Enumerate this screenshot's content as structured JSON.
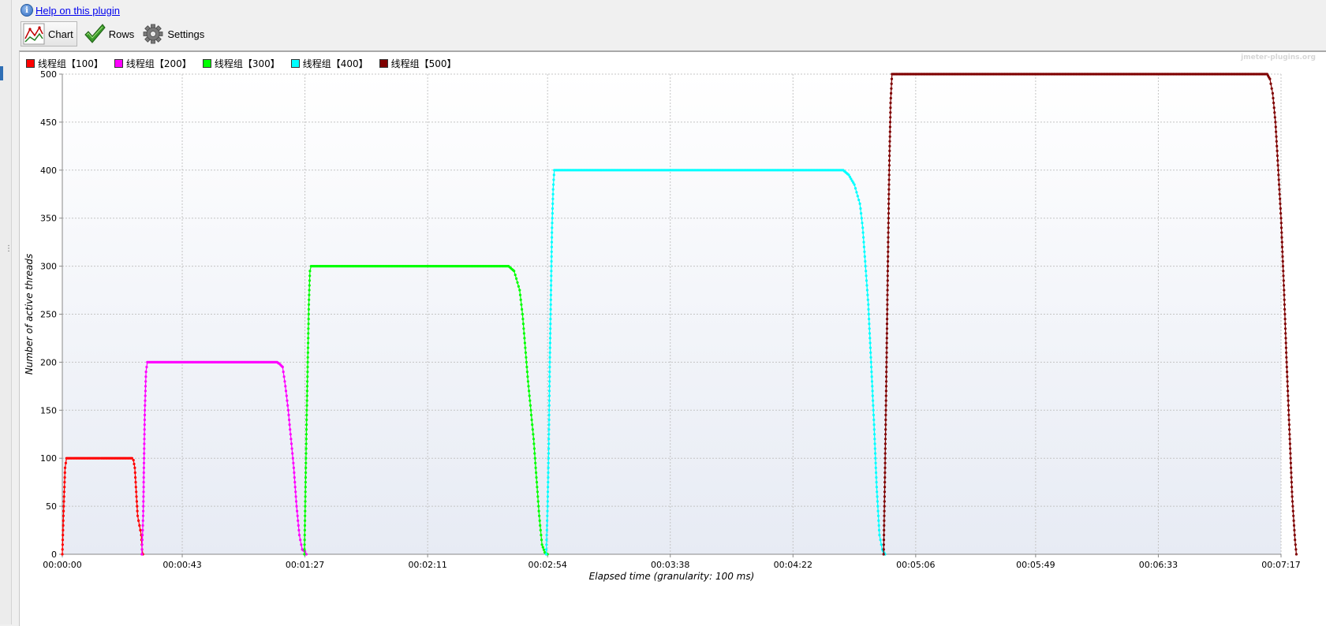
{
  "help": {
    "link_text": "Help on this plugin",
    "icon": "info-icon"
  },
  "toolbar": {
    "chart_label": "Chart",
    "rows_label": "Rows",
    "settings_label": "Settings"
  },
  "watermark": "jmeter-plugins.org",
  "chart_data": {
    "type": "line",
    "title": "",
    "xlabel": "Elapsed time (granularity: 100 ms)",
    "ylabel": "Number of active threads",
    "xlim": [
      0,
      437
    ],
    "ylim": [
      0,
      500
    ],
    "y_ticks": [
      0,
      50,
      100,
      150,
      200,
      250,
      300,
      350,
      400,
      450,
      500
    ],
    "x_ticks": [
      {
        "value": 0,
        "label": "00:00:00"
      },
      {
        "value": 43,
        "label": "00:00:43"
      },
      {
        "value": 87,
        "label": "00:01:27"
      },
      {
        "value": 131,
        "label": "00:02:11"
      },
      {
        "value": 174,
        "label": "00:02:54"
      },
      {
        "value": 218,
        "label": "00:03:38"
      },
      {
        "value": 262,
        "label": "00:04:22"
      },
      {
        "value": 306,
        "label": "00:05:06"
      },
      {
        "value": 349,
        "label": "00:05:49"
      },
      {
        "value": 393,
        "label": "00:06:33"
      },
      {
        "value": 437,
        "label": "00:07:17"
      }
    ],
    "grid": true,
    "legend_position": "top-left",
    "series": [
      {
        "name": "线程组【100】",
        "color": "#ff0000",
        "x": [
          0,
          0.5,
          1,
          1.5,
          25,
          25.5,
          26,
          26.3,
          26.6,
          27,
          28.3,
          28.6,
          28.9
        ],
        "y": [
          0,
          50,
          90,
          100,
          100,
          98,
          90,
          75,
          60,
          40,
          20,
          5,
          0
        ]
      },
      {
        "name": "线程组【200】",
        "color": "#ff00ff",
        "x": [
          28.5,
          29,
          29.3,
          29.6,
          30,
          30.5,
          77,
          78,
          79,
          80,
          81,
          82,
          83,
          84,
          85,
          86,
          87,
          87.5
        ],
        "y": [
          0,
          40,
          100,
          150,
          190,
          200,
          200,
          198,
          195,
          175,
          150,
          120,
          90,
          50,
          20,
          5,
          3,
          0
        ]
      },
      {
        "name": "线程组【300】",
        "color": "#00ff00",
        "x": [
          86.8,
          87.2,
          87.6,
          88,
          88.4,
          88.8,
          89.2,
          160,
          162,
          164,
          165,
          166,
          167,
          168,
          169,
          170,
          171,
          172,
          173,
          174
        ],
        "y": [
          0,
          70,
          140,
          200,
          260,
          295,
          300,
          300,
          295,
          275,
          250,
          215,
          180,
          150,
          120,
          80,
          40,
          10,
          2,
          0
        ]
      },
      {
        "name": "线程组【400】",
        "color": "#00ffff",
        "x": [
          173.5,
          174,
          174.4,
          174.8,
          175.2,
          175.6,
          176,
          176.4,
          280,
          282,
          284,
          286,
          287,
          288,
          289,
          290,
          291,
          292,
          293,
          294,
          295
        ],
        "y": [
          0,
          50,
          110,
          200,
          270,
          340,
          380,
          400,
          400,
          395,
          385,
          365,
          340,
          300,
          260,
          200,
          140,
          70,
          20,
          5,
          0
        ]
      },
      {
        "name": "线程组【500】",
        "color": "#7f0000",
        "x": [
          294.5,
          295,
          295.5,
          296,
          296.5,
          297,
          297.5,
          432,
          433,
          434,
          435,
          436,
          437,
          438,
          439,
          440,
          441,
          442,
          442.5
        ],
        "y": [
          0,
          90,
          190,
          300,
          400,
          470,
          500,
          500,
          495,
          480,
          450,
          400,
          350,
          280,
          200,
          130,
          60,
          15,
          0
        ]
      }
    ]
  }
}
